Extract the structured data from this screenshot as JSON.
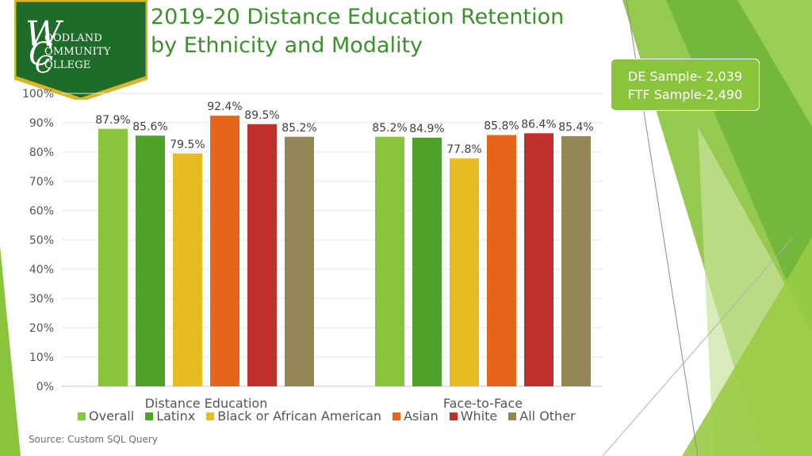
{
  "title_line1": "2019-20 Distance Education Retention",
  "title_line2": "by Ethnicity and Modality",
  "logo": {
    "line1": "OODLAND",
    "line2": "OMMUNITY",
    "line3": "OLLEGE",
    "initials": "WCC"
  },
  "callout": {
    "line1": "DE Sample- 2,039",
    "line2": "FTF Sample-2,490"
  },
  "source": "Source: Custom SQL Query",
  "colors": {
    "accent": "#8ac33c",
    "title": "#3d8f2e",
    "logo_bg": "#1e6b2a",
    "logo_border": "#d9b628"
  },
  "chart_data": {
    "type": "bar",
    "categories": [
      "Distance Education",
      "Face-to-Face"
    ],
    "series": [
      {
        "name": "Overall",
        "color": "#8ac33c",
        "values": [
          87.9,
          85.2
        ],
        "labels": [
          "87.9%",
          "85.2%"
        ]
      },
      {
        "name": "Latinx",
        "color": "#4ea129",
        "values": [
          85.6,
          84.9
        ],
        "labels": [
          "85.6%",
          "84.9%"
        ]
      },
      {
        "name": "Black or African American",
        "color": "#e6bb23",
        "values": [
          79.5,
          77.8
        ],
        "labels": [
          "79.5%",
          "77.8%"
        ]
      },
      {
        "name": "Asian",
        "color": "#e5661a",
        "values": [
          92.4,
          85.8
        ],
        "labels": [
          "92.4%",
          "85.8%"
        ]
      },
      {
        "name": "White",
        "color": "#c0302a",
        "values": [
          89.5,
          86.4
        ],
        "labels": [
          "89.5%",
          "86.4%"
        ]
      },
      {
        "name": "All Other",
        "color": "#948756",
        "values": [
          85.2,
          85.4
        ],
        "labels": [
          "85.2%",
          "85.4%"
        ]
      }
    ],
    "yticks": [
      "0%",
      "10%",
      "20%",
      "30%",
      "40%",
      "50%",
      "60%",
      "70%",
      "80%",
      "90%",
      "100%"
    ],
    "ylim": [
      0,
      100
    ],
    "grid": true,
    "legend": "bottom"
  }
}
